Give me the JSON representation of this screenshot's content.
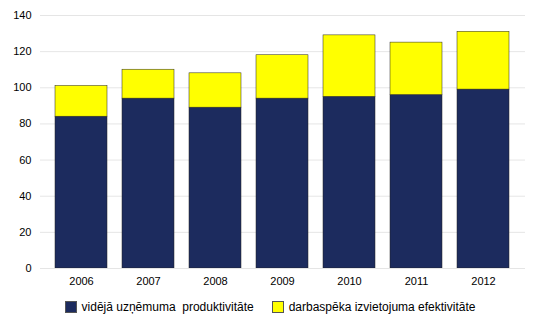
{
  "chart_data": {
    "type": "bar",
    "stacked": true,
    "categories": [
      "2006",
      "2007",
      "2008",
      "2009",
      "2010",
      "2011",
      "2012"
    ],
    "series": [
      {
        "name": "vidējā uzņēmuma  produktivitāte",
        "color": "#1C2B5E",
        "values": [
          84,
          94,
          89,
          94,
          95,
          96,
          99
        ]
      },
      {
        "name": "darbaspēka izvietojuma efektivitāte",
        "color": "#FFFF00",
        "values": [
          17,
          16,
          19,
          24,
          34,
          29,
          32
        ]
      }
    ],
    "ylim": [
      0,
      140
    ],
    "yticks": [
      0,
      20,
      40,
      60,
      80,
      100,
      120,
      140
    ],
    "grid": true,
    "legend": "bottom"
  }
}
